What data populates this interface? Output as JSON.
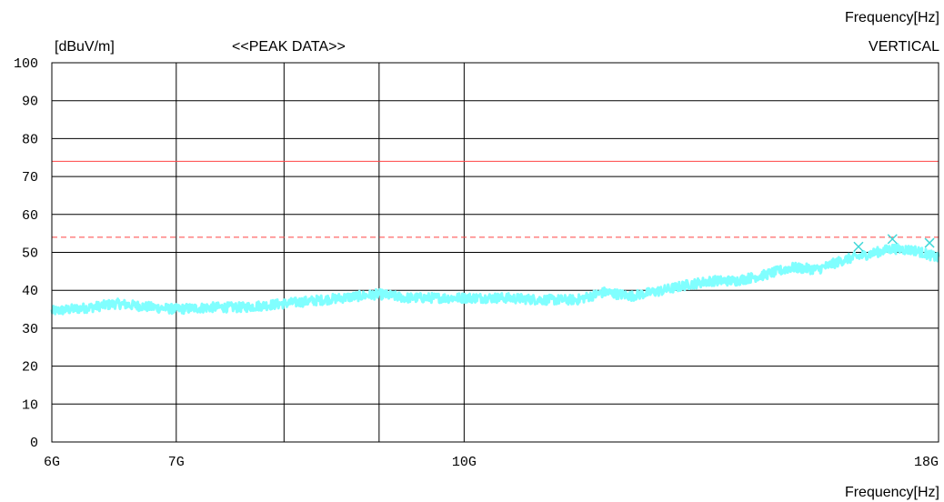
{
  "header": {
    "freq_label_top": "Frequency[Hz]",
    "unit_label": "[dBuV/m]",
    "chart_title": "<<PEAK DATA>>",
    "legend_vertical": "VERTICAL"
  },
  "footer": {
    "freq_label_bottom": "Frequency[Hz]"
  },
  "colors": {
    "trace": "#80ffff",
    "marker": "#40d8d8",
    "limit": "#ff4444",
    "grid": "#000000"
  },
  "chart_data": {
    "type": "line",
    "title": "<<PEAK DATA>>",
    "xlabel": "Frequency[Hz]",
    "ylabel": "[dBuV/m]",
    "x_scale": "log",
    "xlim": [
      6000000000,
      18000000000
    ],
    "ylim": [
      0,
      100
    ],
    "grid": true,
    "legend": "top-right",
    "y_ticks": [
      0,
      10,
      20,
      30,
      40,
      50,
      60,
      70,
      80,
      90,
      100
    ],
    "x_tick_labels": [
      {
        "value": 6000000000,
        "label": "6G"
      },
      {
        "value": 7000000000,
        "label": "7G"
      },
      {
        "value": 10000000000,
        "label": "10G"
      },
      {
        "value": 18000000000,
        "label": "18G"
      }
    ],
    "x_gridlines": [
      7000000000,
      8000000000,
      9000000000,
      10000000000
    ],
    "limits": [
      {
        "value": 74,
        "style": "solid"
      },
      {
        "value": 54,
        "style": "dashed"
      }
    ],
    "series": [
      {
        "name": "VERTICAL",
        "x": [
          6000000000,
          6300000000,
          6500000000,
          6800000000,
          7000000000,
          7300000000,
          7600000000,
          8000000000,
          8400000000,
          8800000000,
          9000000000,
          9300000000,
          9700000000,
          10000000000,
          10500000000,
          11000000000,
          11500000000,
          11900000000,
          12300000000,
          12800000000,
          13200000000,
          13600000000,
          14000000000,
          14500000000,
          15000000000,
          15500000000,
          16000000000,
          16500000000,
          17000000000,
          17500000000,
          18000000000
        ],
        "values": [
          34.5,
          35.5,
          36.5,
          35.5,
          35,
          35.5,
          35.5,
          36.5,
          37.5,
          38.5,
          39,
          38,
          38,
          38,
          38,
          37.5,
          37.5,
          39.5,
          38.5,
          40,
          41.5,
          42.5,
          42.5,
          44,
          46,
          45.5,
          48,
          49.5,
          51,
          50.5,
          48.5
        ]
      }
    ],
    "markers": [
      {
        "x": 16300000000,
        "y": 51.5
      },
      {
        "x": 17000000000,
        "y": 53.5
      },
      {
        "x": 17800000000,
        "y": 52.5
      }
    ]
  }
}
